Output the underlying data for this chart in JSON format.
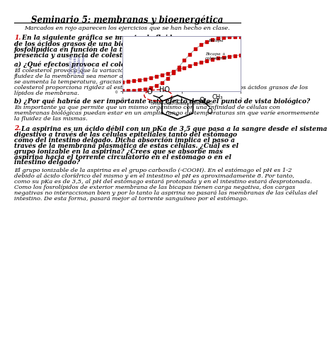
{
  "title": "Seminario 5: membranas y bioenergética",
  "subtitle": "Marcados en rojo aparecen los ejercicios que se han hecho en clase.",
  "background": "#ffffff",
  "text_color": "#000000",
  "red_color": "#cc0000",
  "graph_border": "#8888aa",
  "q1_line0": "1.",
  "q1_line0b": " En la siguiente gráfica se muestra la fluidez",
  "q1_lines": [
    "de los ácidos grasos de una bicapa",
    "fosfolipídica en función de la temperatura en",
    "presencia y ausencia de colesterol."
  ],
  "q1a_head": "a) ¿Qué efectos provoca el colesterol?",
  "q1a_body": [
    "El colesterol provoca que la variación de la",
    "fluidez de la membrana sea menor a medida que",
    "se aumenta la temperatura, gracias a que el",
    "colesterol proporciona rigidez al establecer enlaces de Van der Waals con los ácidos grasos de los",
    "lípidos de membrana."
  ],
  "q1b_head": "b) ¿Por qué habría de ser importante este efecto desde el punto de vista biológico?",
  "q1b_body": [
    "Es importante ya que permite que un mismo organismo con una infinidad de células con",
    "membranas biológicas puedan estar en un amplio rango de temperaturas sin que varíe enormemente",
    "la fluidez de las mismas."
  ],
  "q2_num": "2.",
  "q2_line0": " La aspirina es un ácido débil con un pKa de 3,5 que pasa a la sangre desde el sistema",
  "q2_lines": [
    "digestivo a través de las células epiteliales tanto del estómago",
    "como del intestino delgado. Dicha absorción implica el paso a",
    "través de la membrana plasmática de estas células. ¿Cuál es el",
    "grupo ionizable en la aspirina? ¿Crees que se absorbe más",
    "aspirina hacia el torrente circulatorio en el estómago o en el",
    "intestino delgado?"
  ],
  "q2_body": [
    "El grupo ionizable de la aspirina es el grupo carboxilo (-COOH). En el estómago el pH es 1-2",
    "debido al ácido clorídrico del mismo y en el intestino el pH es aproximadamente 8. Por tanto,",
    "como su pKa es de 3,5, al pH del estómago estará protonada y en el intestino estará desprotonada.",
    "Como los fosrolípidos de exterior membrana de las bicapas tienen carga negativa, dos cargas",
    "negativas no interaccionan bien y por lo tanto la aspirina no pasará las membranas de las células del",
    "intestino. De esta forma, pasará mejor al torrente sanguíneo por el estómago."
  ],
  "graph_ylabel": "Fluidez de\nmembrana\n(unidades\narbitrarias)",
  "graph_xlabel": "Temperatura (unidades arbitrarias)",
  "graph_label1": "Bicapa",
  "graph_label2": "Bicapa +\ncolesterol",
  "ylabel_color": "#6666aa"
}
